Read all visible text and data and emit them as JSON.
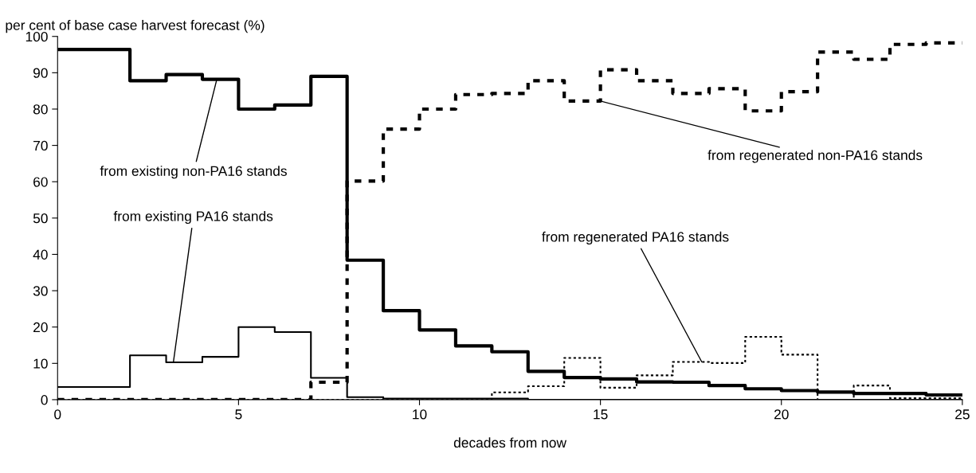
{
  "chart_data": {
    "type": "step",
    "xlabel": "decades from now",
    "ylabel": "per cent of base case harvest forecast (%)",
    "x": [
      0,
      1,
      2,
      3,
      4,
      5,
      6,
      7,
      8,
      9,
      10,
      11,
      12,
      13,
      14,
      15,
      16,
      17,
      18,
      19,
      20,
      21,
      22,
      23,
      24,
      25
    ],
    "series": [
      {
        "color": "#000000",
        "line_style": "solid",
        "values": [
          96.4,
          96.4,
          87.8,
          89.5,
          88.2,
          80,
          81.1,
          89,
          38.4,
          24.5,
          19.2,
          14.8,
          13.2,
          7.8,
          6.1,
          5.7,
          4.9,
          4.8,
          3.9,
          3,
          2.5,
          2.1,
          1.7,
          1.7,
          1.3,
          1.3
        ]
      },
      {
        "color": "#000000",
        "line_style": "solid",
        "values": [
          3.5,
          3.5,
          12.2,
          10.3,
          11.8,
          20,
          18.6,
          6,
          0.7,
          0.3,
          0.3,
          0.3,
          0.3,
          0,
          0,
          0,
          0,
          0,
          0,
          0,
          0,
          0,
          0,
          0,
          0,
          0
        ]
      },
      {
        "color": "#000000",
        "line_style": "dashed",
        "values": [
          0,
          0,
          0,
          0,
          0,
          0,
          0,
          4.8,
          60.2,
          74.5,
          80,
          84,
          84.3,
          87.8,
          82.2,
          90.8,
          87.8,
          84.3,
          85.6,
          79.5,
          84.8,
          95.7,
          93.7,
          97.8,
          98.2,
          98.2
        ]
      },
      {
        "color": "#000000",
        "line_style": "dotted",
        "values": [
          0,
          0,
          0,
          0,
          0,
          0,
          0,
          0,
          0,
          0,
          0,
          0,
          2,
          3.7,
          11.5,
          3.3,
          6.7,
          10.4,
          10.1,
          17.3,
          12.4,
          0,
          3.9,
          0.4,
          0.4,
          0.4
        ]
      }
    ],
    "annotations": [
      {
        "text": "from existing non-PA16 stands",
        "x": 4.4,
        "y": 88.2
      },
      {
        "text": "from existing PA16 stands",
        "x": 3.2,
        "y": 10.3
      },
      {
        "text": "from regenerated non-PA16 stands",
        "x": 15,
        "y": 82.2
      },
      {
        "text": "from regenerated PA16 stands",
        "x": 17.8,
        "y": 10.4
      }
    ],
    "xlim": [
      0,
      25
    ],
    "xticks": [
      0,
      5,
      10,
      15,
      20,
      25
    ],
    "ylim": [
      0,
      100
    ],
    "yticks": [
      0,
      10,
      20,
      30,
      40,
      50,
      60,
      70,
      80,
      90,
      100
    ],
    "grid": false,
    "legend": false
  }
}
